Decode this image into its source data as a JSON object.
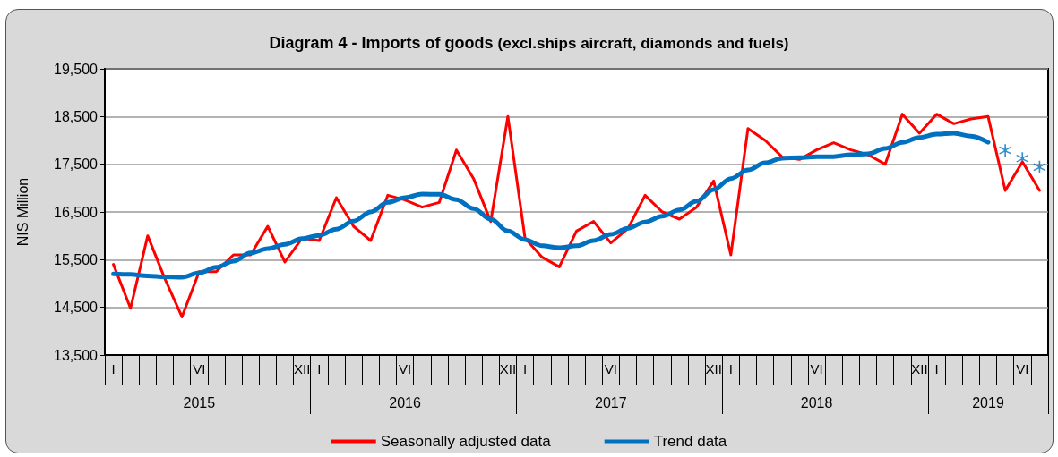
{
  "chart_data": {
    "type": "line",
    "title": "Diagram 4 - Imports of goods",
    "subtitle": "(excl.ships aircraft, diamonds and fuels)",
    "ylabel": "NIS Million",
    "categories": [
      "I",
      null,
      null,
      null,
      null,
      "VI",
      null,
      null,
      null,
      null,
      null,
      "XII",
      "I",
      null,
      null,
      null,
      null,
      "VI",
      null,
      null,
      null,
      null,
      null,
      "XII",
      "I",
      null,
      null,
      null,
      null,
      "VI",
      null,
      null,
      null,
      null,
      null,
      "XII",
      "I",
      null,
      null,
      null,
      null,
      "VI",
      null,
      null,
      null,
      null,
      null,
      "XII",
      "I",
      null,
      null,
      null,
      null,
      "VI",
      null
    ],
    "annotations": [
      "2015",
      "2016",
      "2017",
      "2018",
      "2019"
    ],
    "ylim": [
      13500,
      19500
    ],
    "yticks": [
      {
        "value": 13500,
        "label": "13,500"
      },
      {
        "value": 14500,
        "label": "14,500"
      },
      {
        "value": 15500,
        "label": "15,500"
      },
      {
        "value": 16500,
        "label": "16,500"
      },
      {
        "value": 17500,
        "label": "17,500"
      },
      {
        "value": 18500,
        "label": "18,500"
      },
      {
        "value": 19500,
        "label": "19,500"
      }
    ],
    "grid": "y",
    "legend": "bottom",
    "marker": "none",
    "line_style": "solid",
    "series": [
      {
        "name": "Seasonally adjusted data",
        "color": "#ff0000",
        "values": [
          15400,
          14480,
          16000,
          15100,
          14300,
          15250,
          15250,
          15600,
          15600,
          16200,
          15450,
          15950,
          15900,
          16800,
          16200,
          15900,
          16850,
          16750,
          16600,
          16700,
          17800,
          17200,
          16300,
          18500,
          15950,
          15550,
          15350,
          16100,
          16300,
          15850,
          16150,
          16850,
          16500,
          16350,
          16600,
          17150,
          15600,
          18250,
          18000,
          17650,
          17600,
          17800,
          17950,
          17800,
          17700,
          17500,
          18550,
          18150,
          18550,
          18350,
          18450,
          18500,
          16950,
          17550,
          16950
        ]
      },
      {
        "name": "Trend data",
        "color": "#0070c0",
        "values": [
          15200,
          15190,
          15160,
          15140,
          15130,
          15225,
          15340,
          15470,
          15640,
          15730,
          15820,
          15940,
          16010,
          16140,
          16310,
          16500,
          16700,
          16800,
          16875,
          16870,
          16760,
          16570,
          16350,
          16100,
          15920,
          15790,
          15750,
          15790,
          15900,
          16030,
          16160,
          16290,
          16410,
          16540,
          16725,
          16970,
          17200,
          17380,
          17530,
          17625,
          17640,
          17660,
          17660,
          17700,
          17720,
          17830,
          17960,
          18060,
          18130,
          18150,
          18090,
          17960,
          null,
          null,
          null
        ]
      },
      {
        "type": "scatter",
        "marker": "star",
        "color": "#0070c0",
        "values": [
          null,
          null,
          null,
          null,
          null,
          null,
          null,
          null,
          null,
          null,
          null,
          null,
          null,
          null,
          null,
          null,
          null,
          null,
          null,
          null,
          null,
          null,
          null,
          null,
          null,
          null,
          null,
          null,
          null,
          null,
          null,
          null,
          null,
          null,
          null,
          null,
          null,
          null,
          null,
          null,
          null,
          null,
          null,
          null,
          null,
          null,
          null,
          null,
          null,
          null,
          null,
          null,
          17790,
          17620,
          17440
        ]
      }
    ]
  }
}
